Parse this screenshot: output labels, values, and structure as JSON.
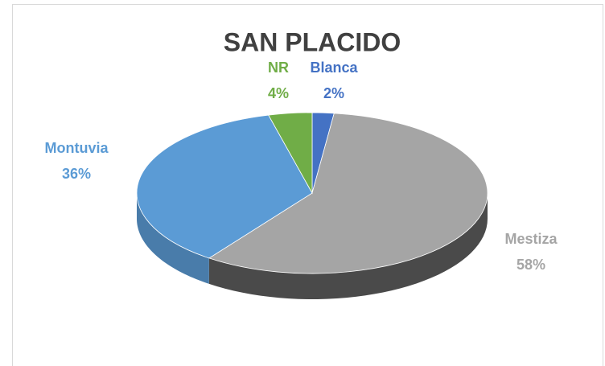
{
  "chart_data": {
    "type": "pie3d",
    "title": "SAN PLACIDO",
    "categories": [
      "Blanca",
      "Mestiza",
      "Montuvia",
      "NR"
    ],
    "values": [
      2,
      58,
      36,
      4
    ],
    "value_labels": [
      "2%",
      "58%",
      "36%",
      "4%"
    ],
    "colors": [
      "#4472c4",
      "#a5a5a5",
      "#5b9bd5",
      "#70ad47"
    ]
  }
}
